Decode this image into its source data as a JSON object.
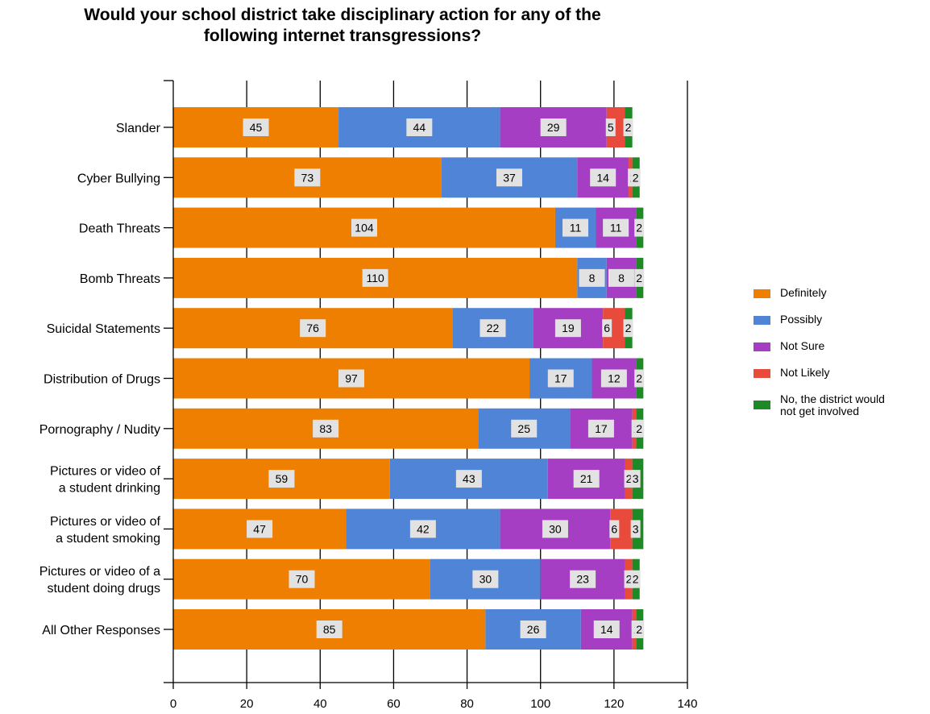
{
  "chart_data": {
    "type": "bar",
    "orientation": "horizontal",
    "stacked": true,
    "title": "Would your school district take disciplinary action for any of the\nfollowing internet transgressions?",
    "categories": [
      "Slander",
      "Cyber Bullying",
      "Death Threats",
      "Bomb Threats",
      "Suicidal Statements",
      "Distribution of Drugs",
      "Pornography / Nudity",
      "Pictures or video of\na student drinking",
      "Pictures or video of\na student smoking",
      "Pictures or video of a\nstudent doing drugs",
      "All Other Responses"
    ],
    "series": [
      {
        "name": "Definitely",
        "color": "#ef7f00",
        "values": [
          45,
          73,
          104,
          110,
          76,
          97,
          83,
          59,
          47,
          70,
          85
        ]
      },
      {
        "name": "Possibly",
        "color": "#4f84d6",
        "values": [
          44,
          37,
          11,
          8,
          22,
          17,
          25,
          43,
          42,
          30,
          26
        ]
      },
      {
        "name": "Not Sure",
        "color": "#a63ec4",
        "values": [
          29,
          14,
          11,
          8,
          19,
          12,
          17,
          21,
          30,
          23,
          14
        ]
      },
      {
        "name": "Not Likely",
        "color": "#e84a3b",
        "values": [
          5,
          1,
          0,
          0,
          6,
          0,
          1,
          2,
          6,
          2,
          1
        ]
      },
      {
        "name": "No, the district would\nnot get involved",
        "color": "#1e8a25",
        "values": [
          2,
          2,
          2,
          2,
          2,
          2,
          2,
          3,
          3,
          2,
          2
        ]
      }
    ],
    "xlim": [
      0,
      140
    ],
    "xticks": [
      0,
      20,
      40,
      60,
      80,
      100,
      120,
      140
    ],
    "grid": true,
    "legend_position": "right"
  }
}
